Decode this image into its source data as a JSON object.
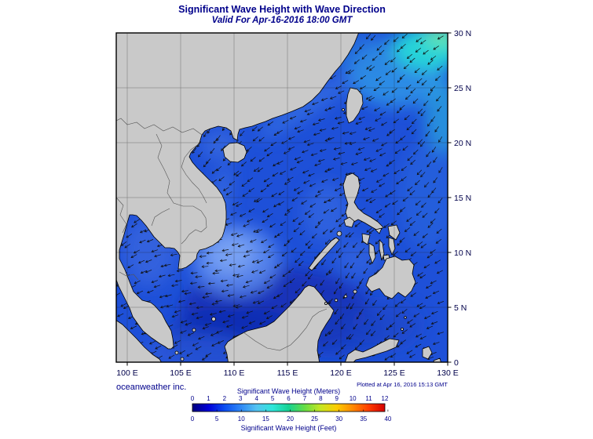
{
  "header": {
    "title": "Significant Wave Height with Wave Direction",
    "subtitle": "Valid For Apr-16-2016 18:00 GMT"
  },
  "footer": {
    "credit": "oceanweather inc.",
    "plotted": "Plotted at Apr 16, 2016 15:13 GMT"
  },
  "axes": {
    "x": [
      {
        "label": "100 E",
        "lon": 100
      },
      {
        "label": "105 E",
        "lon": 105
      },
      {
        "label": "110 E",
        "lon": 110
      },
      {
        "label": "115 E",
        "lon": 115
      },
      {
        "label": "120 E",
        "lon": 120
      },
      {
        "label": "125 E",
        "lon": 125
      },
      {
        "label": "130 E",
        "lon": 130
      }
    ],
    "y": [
      {
        "label": "30 N",
        "lat": 30
      },
      {
        "label": "25 N",
        "lat": 25
      },
      {
        "label": "20 N",
        "lat": 20
      },
      {
        "label": "15 N",
        "lat": 15
      },
      {
        "label": "10 N",
        "lat": 10
      },
      {
        "label": "5 N",
        "lat": 5
      },
      {
        "label": "0",
        "lat": 0
      }
    ]
  },
  "legend": {
    "title_meters": "Significant Wave Height (Meters)",
    "title_feet": "Significant Wave Height (Feet)",
    "meters_ticks": [
      0,
      1,
      2,
      3,
      4,
      5,
      6,
      7,
      8,
      9,
      10,
      11,
      12
    ],
    "feet_ticks": [
      0,
      5,
      10,
      15,
      20,
      25,
      30,
      35,
      40
    ],
    "gradient": [
      "#000080",
      "#0000d8",
      "#0b4df0",
      "#2e86f5",
      "#53c3f1",
      "#2ee6da",
      "#16d292",
      "#66dd44",
      "#c6e622",
      "#fccc00",
      "#ff8800",
      "#ff3c00",
      "#d40000"
    ]
  },
  "colors": {
    "ocean_base": "#1e50d8",
    "land": "#c9c9c9",
    "coastline": "#000000",
    "text_navy": "#00008b",
    "axis_text": "#00004a",
    "arrow": "#101010"
  },
  "chart_data": {
    "type": "heatmap",
    "title": "Significant Wave Height with Wave Direction",
    "valid_time": "Apr-16-2016 18:00 GMT",
    "plotted_time": "Apr 16, 2016 15:13 GMT",
    "region": {
      "lon_min": 99,
      "lon_max": 130,
      "lat_min": 0,
      "lat_max": 30
    },
    "units": [
      "meters",
      "feet"
    ],
    "scale_range_m": [
      0,
      12
    ],
    "scale_range_ft": [
      0,
      40
    ],
    "estimated_heights_m": [
      {
        "area": "Pacific northeast of Taiwan (cyan patch)",
        "value": 4.5
      },
      {
        "area": "Along eastern map edge 20-25N",
        "value": 3.0
      },
      {
        "area": "Pale patch southeast of Vietnam coast",
        "value": 2.5
      },
      {
        "area": "Central South China Sea",
        "value": 1.2
      },
      {
        "area": "Philippine Sea east of Luzon",
        "value": 1.2
      },
      {
        "area": "Southern South China Sea / Java Sea (dark blue)",
        "value": 0.7
      },
      {
        "area": "Gulf of Thailand and coastal waters",
        "value": 0.5
      }
    ],
    "wave_direction_summary": "arrow field propagating predominantly toward the southwest to west across the domain"
  }
}
